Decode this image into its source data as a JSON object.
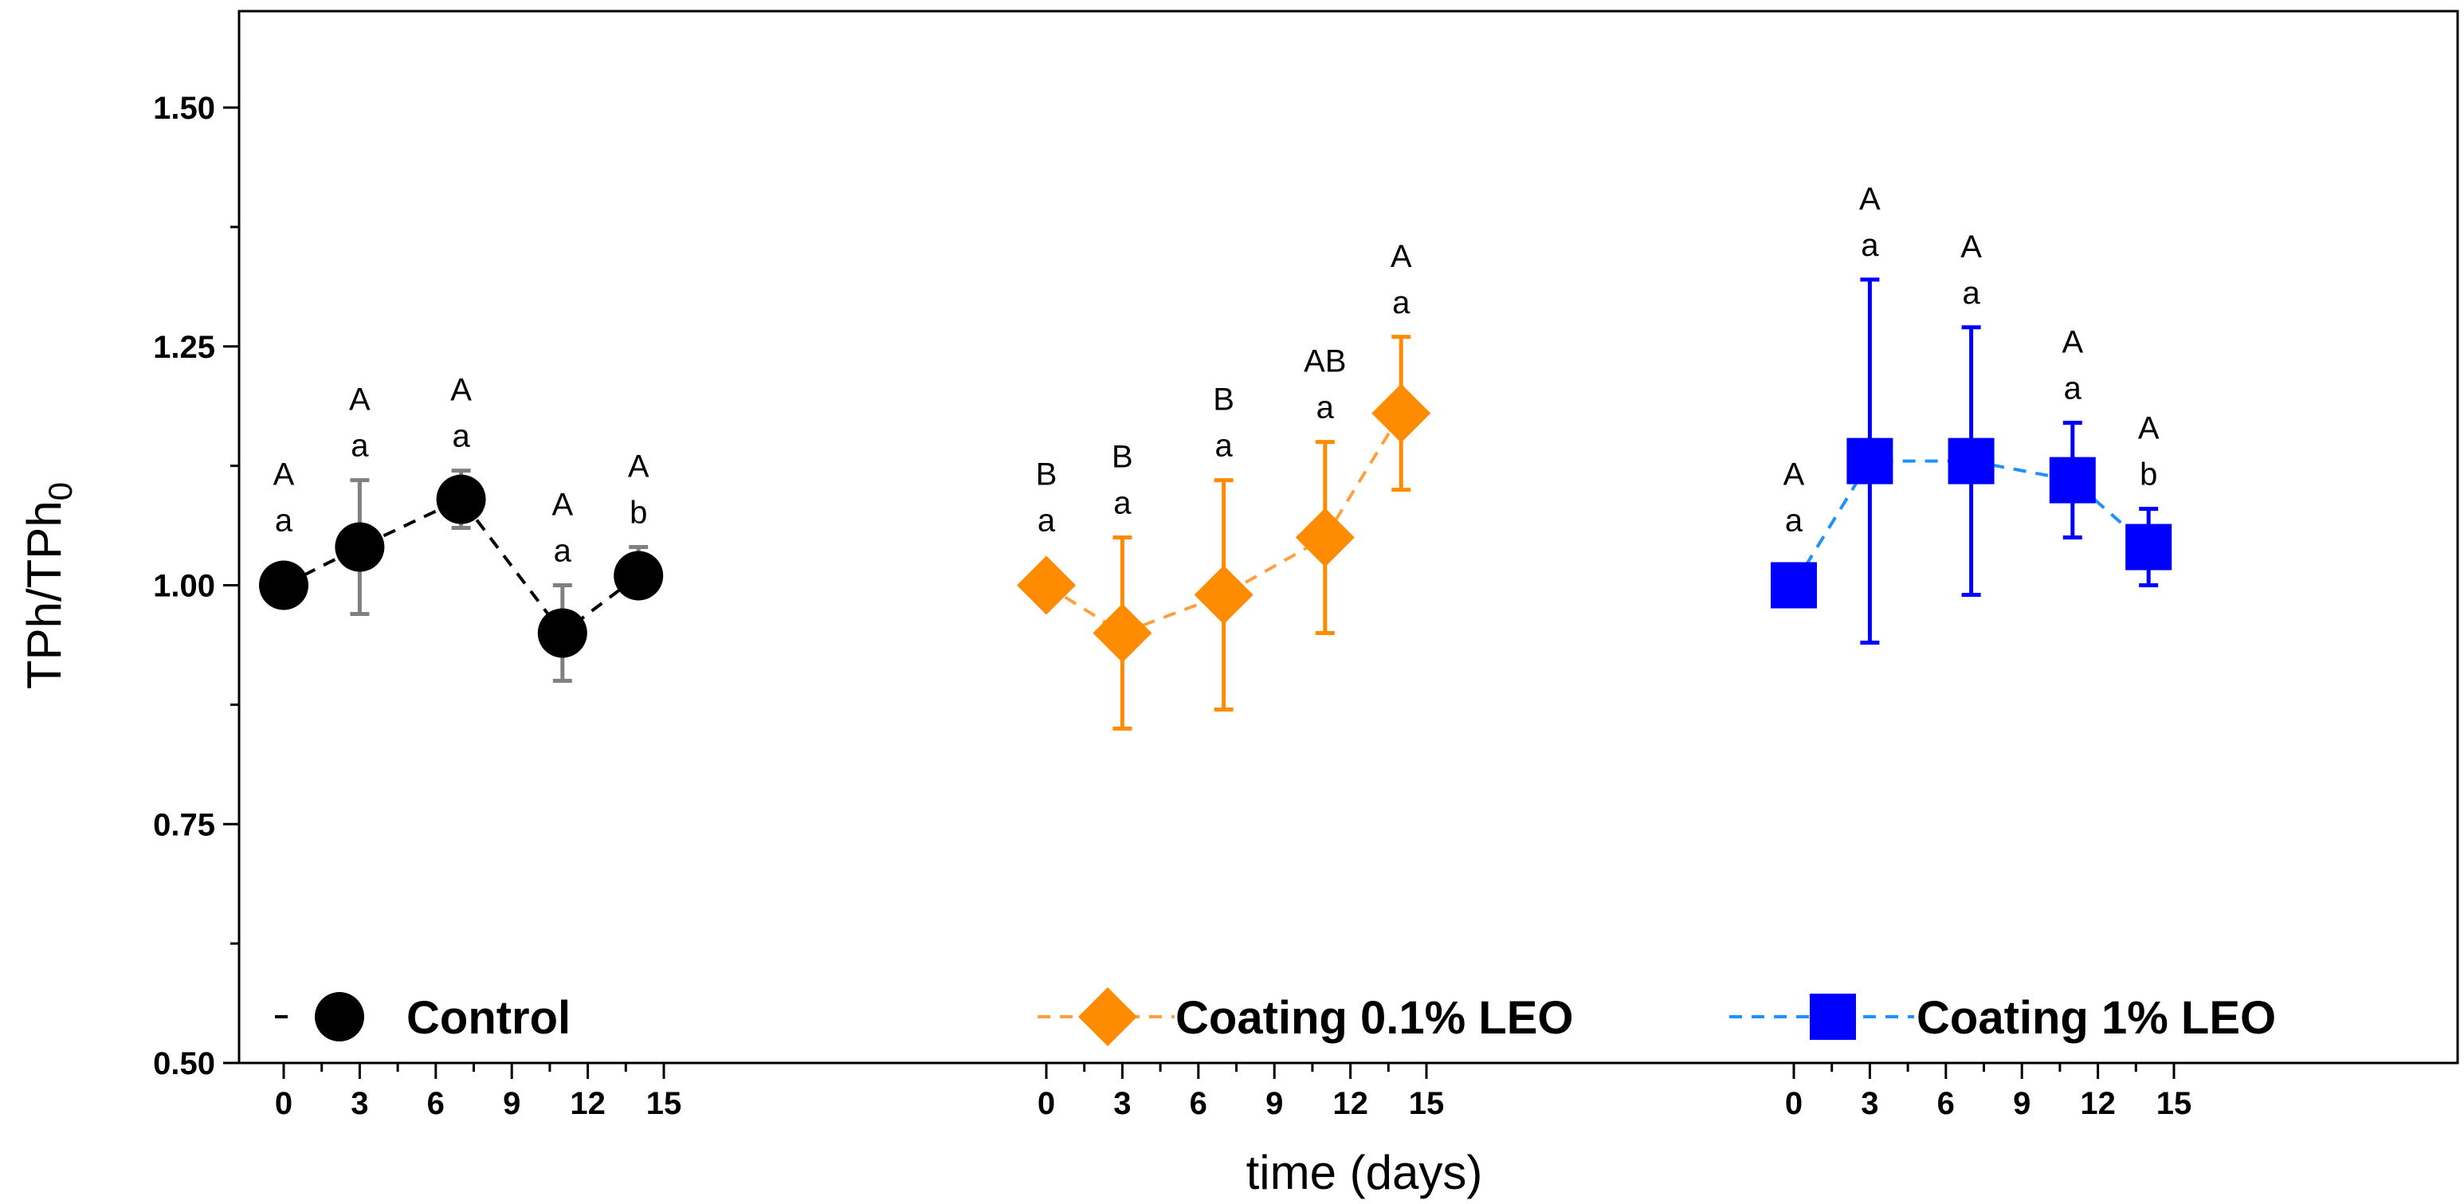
{
  "chart_data": {
    "type": "scatter",
    "title": "",
    "xlabel": "time (days)",
    "ylabel": "TPh/TPh",
    "ylabel_subscript": "0",
    "ylim": [
      0.5,
      1.6
    ],
    "yticks": [
      0.5,
      0.75,
      1.0,
      1.25,
      1.5
    ],
    "ytick_labels": [
      "0.50",
      "0.75",
      "1.00",
      "1.25",
      "1.50"
    ],
    "xticks": [
      0,
      3,
      6,
      9,
      12,
      15
    ],
    "xtick_labels": [
      "0",
      "3",
      "6",
      "9",
      "12",
      "15"
    ],
    "panel_xlim": [
      -1,
      16
    ],
    "series": [
      {
        "name": "Control",
        "color": "#000000",
        "error_color": "#808080",
        "marker": "circle",
        "x": [
          0,
          3,
          7,
          11,
          14
        ],
        "y": [
          1.0,
          1.04,
          1.09,
          0.95,
          1.01
        ],
        "err_low": [
          0,
          0.07,
          0.03,
          0.05,
          0.02
        ],
        "err_high": [
          0,
          0.07,
          0.03,
          0.05,
          0.03
        ],
        "upper_letters": [
          "A",
          "A",
          "A",
          "A",
          "A"
        ],
        "lower_letters": [
          "a",
          "a",
          "a",
          "a",
          "b"
        ]
      },
      {
        "name": "Coating 0.1% LEO",
        "color": "#FF8C00",
        "error_color": "#FF8C00",
        "marker": "diamond",
        "x": [
          0,
          3,
          7,
          11,
          14
        ],
        "y": [
          1.0,
          0.95,
          0.99,
          1.05,
          1.18
        ],
        "err_low": [
          0,
          0.1,
          0.12,
          0.1,
          0.08
        ],
        "err_high": [
          0,
          0.1,
          0.12,
          0.1,
          0.08
        ],
        "upper_letters": [
          "B",
          "B",
          "B",
          "AB",
          "A"
        ],
        "lower_letters": [
          "a",
          "a",
          "a",
          "a",
          "a"
        ]
      },
      {
        "name": "Coating 1% LEO",
        "color": "#0000FF",
        "error_color": "#0000FF",
        "marker": "square",
        "x": [
          0,
          3,
          7,
          11,
          14
        ],
        "y": [
          1.0,
          1.13,
          1.13,
          1.11,
          1.04
        ],
        "err_low": [
          0,
          0.19,
          0.14,
          0.06,
          0.04
        ],
        "err_high": [
          0,
          0.19,
          0.14,
          0.06,
          0.04
        ],
        "upper_letters": [
          "A",
          "A",
          "A",
          "A",
          "A"
        ],
        "lower_letters": [
          "a",
          "a",
          "a",
          "a",
          "b"
        ]
      }
    ],
    "legend": {
      "placement": "bottom",
      "entries": [
        "Control",
        "Coating 0.1% LEO",
        "Coating 1% LEO"
      ]
    },
    "grid": false
  }
}
